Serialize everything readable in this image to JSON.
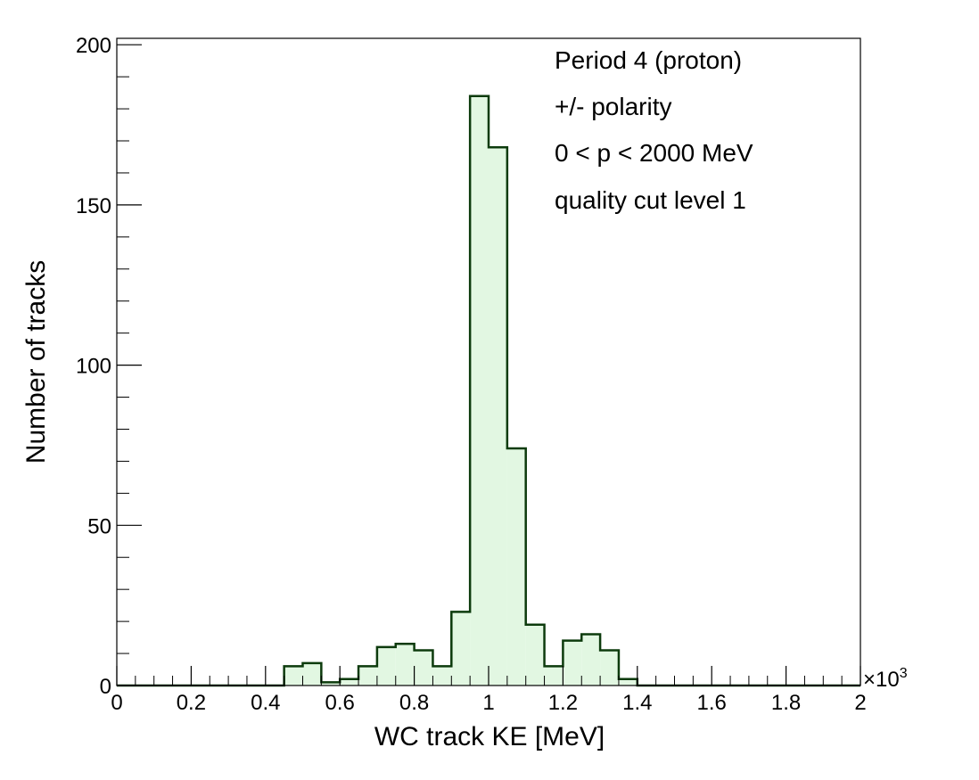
{
  "chart_data": {
    "type": "histogram",
    "xlabel": "WC track KE [MeV]",
    "ylabel": "Number of tracks",
    "x_multiplier_label": "×10",
    "x_multiplier_exponent": "3",
    "xlim": [
      0,
      2
    ],
    "ylim": [
      0,
      202
    ],
    "x_ticks": [
      {
        "value": 0,
        "label": "0"
      },
      {
        "value": 0.2,
        "label": "0.2"
      },
      {
        "value": 0.4,
        "label": "0.4"
      },
      {
        "value": 0.6,
        "label": "0.6"
      },
      {
        "value": 0.8,
        "label": "0.8"
      },
      {
        "value": 1.0,
        "label": "1"
      },
      {
        "value": 1.2,
        "label": "1.2"
      },
      {
        "value": 1.4,
        "label": "1.4"
      },
      {
        "value": 1.6,
        "label": "1.6"
      },
      {
        "value": 1.8,
        "label": "1.8"
      },
      {
        "value": 2.0,
        "label": "2"
      }
    ],
    "y_ticks": [
      {
        "value": 0,
        "label": "0"
      },
      {
        "value": 50,
        "label": "50"
      },
      {
        "value": 100,
        "label": "100"
      },
      {
        "value": 150,
        "label": "150"
      },
      {
        "value": 200,
        "label": "200"
      }
    ],
    "bin_width": 0.05,
    "bins_start": 0,
    "values": [
      0,
      0,
      0,
      0,
      0,
      0,
      0,
      0,
      0,
      6,
      7,
      1,
      2,
      6,
      12,
      13,
      11,
      6,
      23,
      184,
      168,
      74,
      19,
      6,
      14,
      16,
      11,
      2,
      0,
      0,
      0,
      0,
      0,
      0,
      0,
      0,
      0,
      0,
      0,
      0
    ],
    "annotations": [
      "Period 4 (proton)",
      "+/- polarity",
      "0 < p < 2000 MeV",
      "quality cut level 1"
    ],
    "colors": {
      "line": "#0d3b0d",
      "fill": "#e2f7e2",
      "frame": "#000000"
    },
    "grid": false
  }
}
